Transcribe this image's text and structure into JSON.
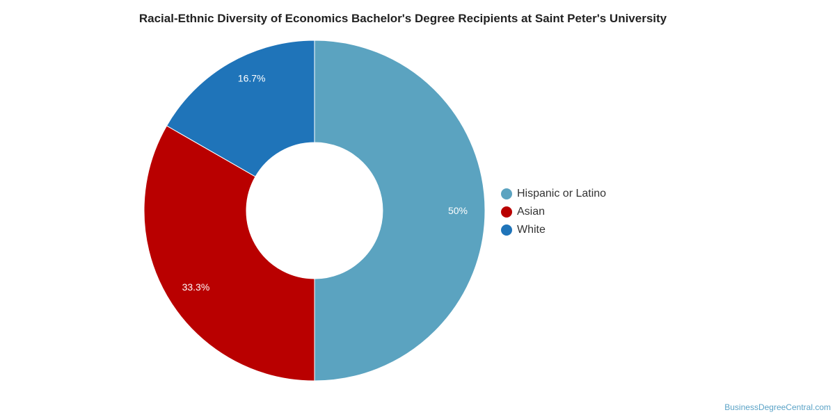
{
  "chart_data": {
    "type": "pie",
    "title": "Racial-Ethnic Diversity of Economics Bachelor's Degree Recipients at Saint Peter's University",
    "donut": true,
    "slices": [
      {
        "label": "Hispanic or Latino",
        "value": 50,
        "display": "50%",
        "color": "#5ba3c0"
      },
      {
        "label": "Asian",
        "value": 33.3,
        "display": "33.3%",
        "color": "#b90000"
      },
      {
        "label": "White",
        "value": 16.7,
        "display": "16.7%",
        "color": "#1f74b9"
      }
    ],
    "legend_position": "right"
  },
  "watermark": "BusinessDegreeCentral.com"
}
